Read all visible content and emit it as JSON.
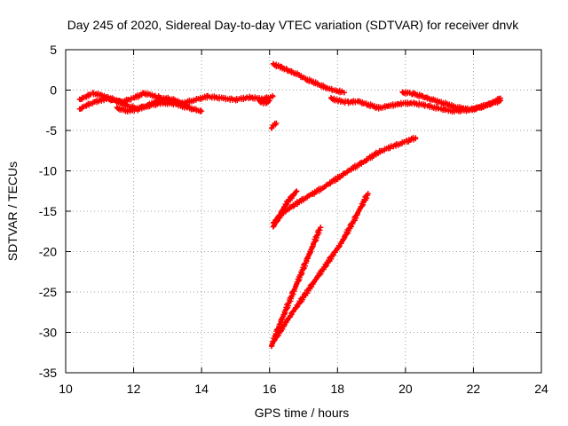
{
  "chart_data": {
    "type": "scatter",
    "title": "Day 245 of 2020, Sidereal Day-to-day VTEC variation (SDTVAR) for receiver dnvk",
    "xlabel": "GPS time / hours",
    "ylabel": "SDTVAR / TECUs",
    "xlim": [
      10,
      24
    ],
    "ylim": [
      -35,
      5
    ],
    "x_ticks": [
      10,
      12,
      14,
      16,
      18,
      20,
      22,
      24
    ],
    "y_ticks": [
      5,
      0,
      -5,
      -10,
      -15,
      -20,
      -25,
      -30,
      -35
    ],
    "grid": true,
    "legend": "none",
    "marker": "plus",
    "color": "#ff0000",
    "segments": [
      {
        "x": [
          10.4,
          10.6,
          10.8,
          11.0,
          11.3,
          11.6,
          12.0,
          12.3,
          12.7,
          13.0,
          13.4,
          13.8,
          14.2,
          14.6,
          15.0,
          15.4,
          15.8,
          16.1
        ],
        "y": [
          -1.2,
          -0.8,
          -0.4,
          -0.6,
          -1.0,
          -1.5,
          -1.0,
          -0.4,
          -0.8,
          -1.3,
          -1.7,
          -1.2,
          -0.8,
          -1.0,
          -1.2,
          -0.9,
          -1.1,
          -0.8
        ]
      },
      {
        "x": [
          10.4,
          10.6,
          10.9,
          11.2,
          11.5,
          11.8,
          12.1,
          12.4,
          12.8,
          13.2,
          13.6,
          14.0
        ],
        "y": [
          -2.4,
          -1.9,
          -1.4,
          -1.1,
          -1.3,
          -1.9,
          -2.3,
          -2.0,
          -1.6,
          -1.7,
          -2.2,
          -2.6
        ]
      },
      {
        "x": [
          11.5,
          11.8,
          12.1,
          12.4,
          12.7,
          13.0,
          13.3,
          13.6
        ],
        "y": [
          -2.2,
          -2.6,
          -2.4,
          -1.9,
          -1.4,
          -1.0,
          -1.4,
          -2.0
        ]
      },
      {
        "x": [
          15.7,
          15.8,
          15.9,
          16.0
        ],
        "y": [
          -1.4,
          -1.6,
          -1.5,
          -1.3
        ]
      },
      {
        "x": [
          16.05,
          16.1,
          16.2
        ],
        "y": [
          -4.8,
          -4.4,
          -4.1
        ]
      },
      {
        "x": [
          16.1,
          16.3,
          16.5,
          16.8,
          17.1,
          17.4,
          17.7,
          18.0,
          18.2
        ],
        "y": [
          3.2,
          2.9,
          2.5,
          2.0,
          1.3,
          0.8,
          0.2,
          -0.1,
          -0.3
        ]
      },
      {
        "x": [
          17.8,
          18.0,
          18.3,
          18.6,
          18.9,
          19.2,
          19.5,
          19.8,
          20.2,
          20.6,
          21.0,
          21.4,
          21.8,
          22.2,
          22.5,
          22.8
        ],
        "y": [
          -1.0,
          -1.3,
          -1.5,
          -1.4,
          -1.8,
          -2.2,
          -2.0,
          -1.7,
          -1.6,
          -1.9,
          -2.3,
          -2.6,
          -2.5,
          -2.1,
          -1.7,
          -1.3
        ]
      },
      {
        "x": [
          19.9,
          20.2,
          20.5,
          20.8,
          21.1,
          21.4,
          21.7,
          22.0,
          22.3,
          22.6,
          22.8
        ],
        "y": [
          -0.3,
          -0.4,
          -0.8,
          -1.2,
          -1.6,
          -2.0,
          -2.3,
          -2.4,
          -2.0,
          -1.5,
          -1.0
        ]
      },
      {
        "x": [
          16.1,
          16.4,
          16.8,
          17.2,
          17.6,
          18.0,
          18.4,
          18.8,
          19.2,
          19.6,
          20.0,
          20.3
        ],
        "y": [
          -16.5,
          -15.2,
          -14.0,
          -13.0,
          -12.0,
          -10.9,
          -9.8,
          -8.8,
          -7.7,
          -7.0,
          -6.4,
          -5.9
        ]
      },
      {
        "x": [
          16.1,
          16.3,
          16.5,
          16.8
        ],
        "y": [
          -17.0,
          -15.5,
          -14.0,
          -12.5
        ]
      },
      {
        "x": [
          16.05,
          16.3,
          16.6,
          16.9,
          17.2,
          17.5
        ],
        "y": [
          -31.8,
          -29.0,
          -26.0,
          -23.0,
          -20.0,
          -17.0
        ]
      },
      {
        "x": [
          16.1,
          16.6,
          17.1,
          17.6,
          18.1,
          18.5,
          18.9
        ],
        "y": [
          -31.2,
          -28.0,
          -25.0,
          -22.0,
          -19.0,
          -16.0,
          -12.8
        ]
      }
    ]
  }
}
